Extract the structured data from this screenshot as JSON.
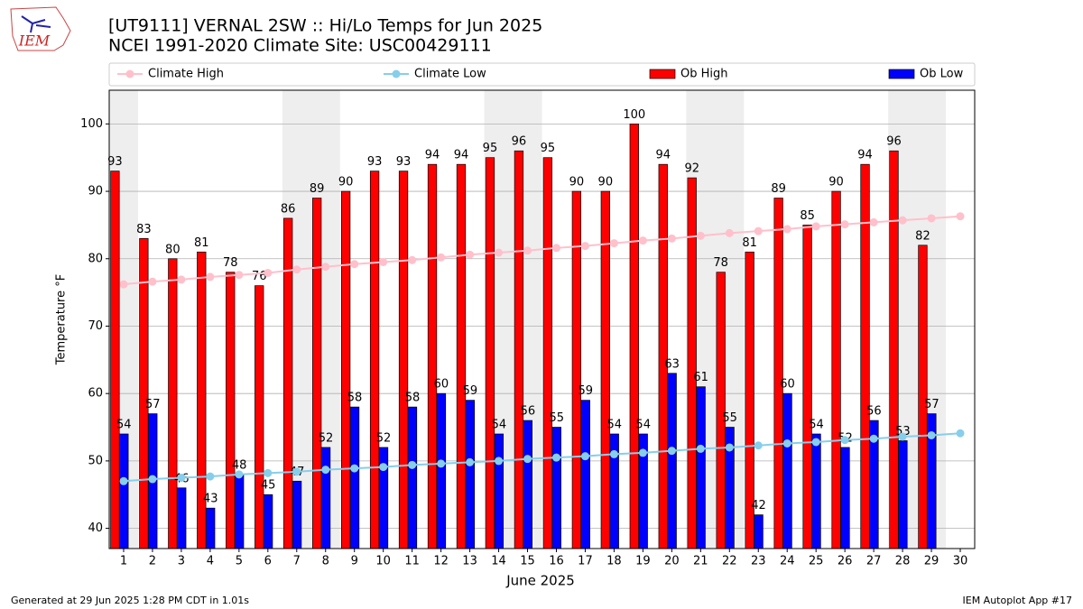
{
  "chart_data": {
    "type": "bar_line",
    "title": "[UT9111] VERNAL 2SW :: Hi/Lo Temps for Jun 2025",
    "subtitle": "NCEI 1991-2020 Climate Site: USC00429111",
    "x_label": "June 2025",
    "y_label": "Temperature °F",
    "x": [
      1,
      2,
      3,
      4,
      5,
      6,
      7,
      8,
      9,
      10,
      11,
      12,
      13,
      14,
      15,
      16,
      17,
      18,
      19,
      20,
      21,
      22,
      23,
      24,
      25,
      26,
      27,
      28,
      29,
      30
    ],
    "xlim": [
      0.5,
      30.5
    ],
    "xticks": [
      1,
      2,
      3,
      4,
      5,
      6,
      7,
      8,
      9,
      10,
      11,
      12,
      13,
      14,
      15,
      16,
      17,
      18,
      19,
      20,
      21,
      22,
      23,
      24,
      25,
      26,
      27,
      28,
      29,
      30
    ],
    "ylim": [
      37,
      105
    ],
    "yticks": [
      40,
      50,
      60,
      70,
      80,
      90,
      100
    ],
    "grid": true,
    "series": [
      {
        "name": "Climate High",
        "kind": "line",
        "color": "#ffc0cb",
        "values": [
          76.2,
          76.6,
          76.9,
          77.3,
          77.6,
          77.9,
          78.4,
          78.8,
          79.2,
          79.5,
          79.8,
          80.2,
          80.6,
          80.9,
          81.2,
          81.6,
          81.9,
          82.3,
          82.7,
          83.0,
          83.4,
          83.8,
          84.1,
          84.4,
          84.8,
          85.1,
          85.4,
          85.7,
          86.0,
          86.3
        ]
      },
      {
        "name": "Climate Low",
        "kind": "line",
        "color": "#87ceeb",
        "values": [
          47.0,
          47.3,
          47.5,
          47.7,
          48.0,
          48.2,
          48.4,
          48.7,
          48.9,
          49.1,
          49.4,
          49.6,
          49.8,
          50.0,
          50.3,
          50.5,
          50.7,
          51.0,
          51.2,
          51.5,
          51.8,
          52.0,
          52.3,
          52.6,
          52.8,
          53.1,
          53.3,
          53.6,
          53.8,
          54.1
        ]
      },
      {
        "name": "Ob High",
        "kind": "bar",
        "color": "#ff0000",
        "values": [
          93,
          83,
          80,
          81,
          78,
          76,
          86,
          89,
          90,
          93,
          93,
          94,
          94,
          95,
          96,
          95,
          90,
          90,
          100,
          94,
          92,
          78,
          81,
          89,
          85,
          90,
          94,
          96,
          82,
          null
        ]
      },
      {
        "name": "Ob Low",
        "kind": "bar",
        "color": "#0000ff",
        "values": [
          54,
          57,
          46,
          43,
          48,
          45,
          47,
          52,
          58,
          52,
          58,
          60,
          59,
          54,
          56,
          55,
          59,
          54,
          54,
          63,
          61,
          55,
          42,
          60,
          54,
          52,
          56,
          53,
          57,
          null
        ]
      }
    ]
  },
  "logo": "IEM",
  "footer": {
    "left": "Generated at 29 Jun 2025 1:28 PM CDT in 1.01s",
    "right": "IEM Autoplot App #17"
  }
}
